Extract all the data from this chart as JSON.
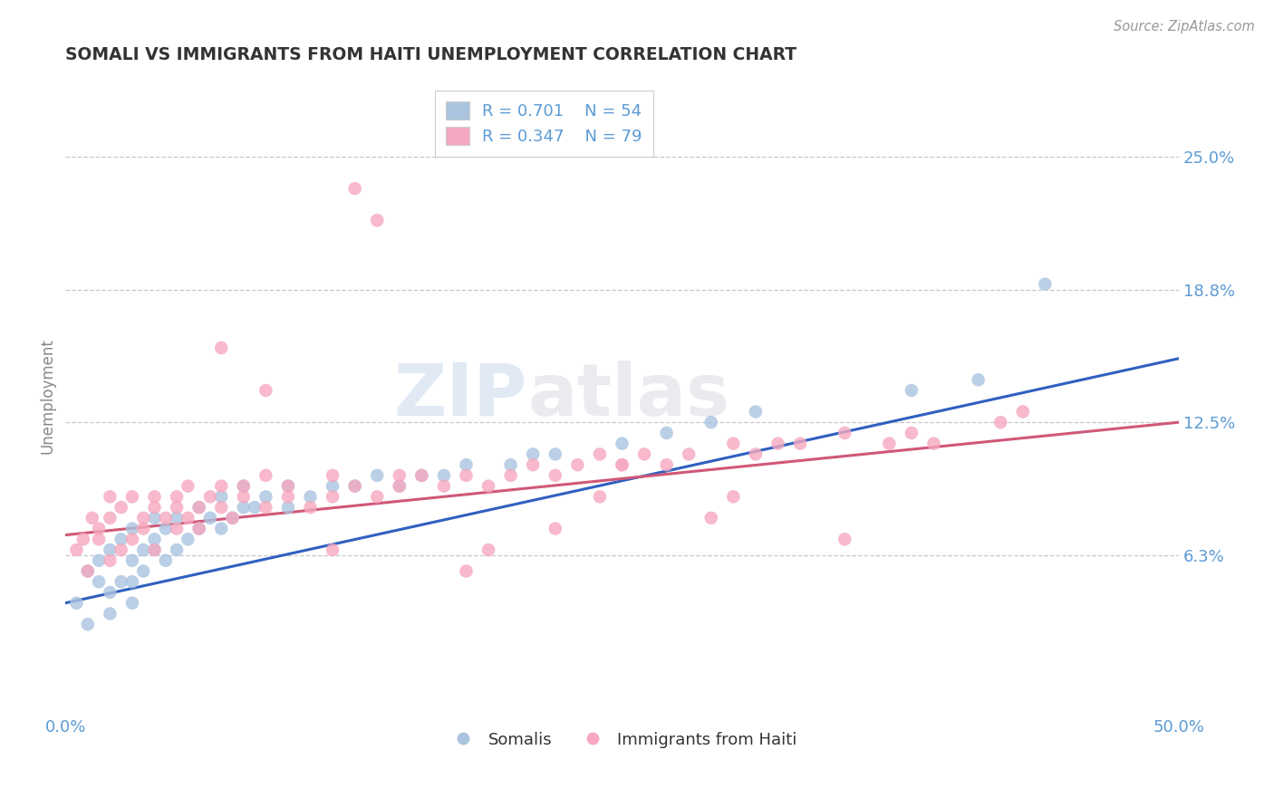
{
  "title": "SOMALI VS IMMIGRANTS FROM HAITI UNEMPLOYMENT CORRELATION CHART",
  "source": "Source: ZipAtlas.com",
  "ylabel": "Unemployment",
  "xmin": 0.0,
  "xmax": 0.5,
  "ymin": -0.01,
  "ymax": 0.285,
  "yticks": [
    0.0625,
    0.125,
    0.1875,
    0.25
  ],
  "ytick_labels": [
    "6.3%",
    "12.5%",
    "18.8%",
    "25.0%"
  ],
  "xticks": [
    0.0,
    0.5
  ],
  "xtick_labels": [
    "0.0%",
    "50.0%"
  ],
  "somali_R": 0.701,
  "somali_N": 54,
  "haiti_R": 0.347,
  "haiti_N": 79,
  "somali_color": "#aac4e0",
  "haiti_color": "#f5a8bf",
  "somali_line_color": "#3060c0",
  "haiti_line_color": "#d05878",
  "background_color": "#ffffff",
  "watermark_zip": "ZIP",
  "watermark_atlas": "atlas",
  "title_color": "#333333",
  "tick_label_color": "#5b9bd5",
  "grid_color": "#bbbbbb",
  "somali_x": [
    0.005,
    0.01,
    0.01,
    0.015,
    0.015,
    0.02,
    0.02,
    0.02,
    0.025,
    0.025,
    0.03,
    0.03,
    0.03,
    0.03,
    0.035,
    0.035,
    0.04,
    0.04,
    0.04,
    0.045,
    0.045,
    0.05,
    0.05,
    0.055,
    0.06,
    0.06,
    0.065,
    0.07,
    0.07,
    0.075,
    0.08,
    0.08,
    0.085,
    0.09,
    0.1,
    0.1,
    0.11,
    0.12,
    0.13,
    0.14,
    0.15,
    0.16,
    0.17,
    0.18,
    0.2,
    0.21,
    0.22,
    0.25,
    0.27,
    0.29,
    0.31,
    0.38,
    0.41,
    0.44
  ],
  "somali_y": [
    0.04,
    0.055,
    0.03,
    0.05,
    0.06,
    0.045,
    0.035,
    0.065,
    0.05,
    0.07,
    0.04,
    0.06,
    0.075,
    0.05,
    0.065,
    0.055,
    0.07,
    0.065,
    0.08,
    0.06,
    0.075,
    0.065,
    0.08,
    0.07,
    0.075,
    0.085,
    0.08,
    0.075,
    0.09,
    0.08,
    0.085,
    0.095,
    0.085,
    0.09,
    0.085,
    0.095,
    0.09,
    0.095,
    0.095,
    0.1,
    0.095,
    0.1,
    0.1,
    0.105,
    0.105,
    0.11,
    0.11,
    0.115,
    0.12,
    0.125,
    0.13,
    0.14,
    0.145,
    0.19
  ],
  "haiti_x": [
    0.005,
    0.008,
    0.01,
    0.012,
    0.015,
    0.015,
    0.02,
    0.02,
    0.02,
    0.025,
    0.025,
    0.03,
    0.03,
    0.035,
    0.035,
    0.04,
    0.04,
    0.04,
    0.045,
    0.05,
    0.05,
    0.05,
    0.055,
    0.055,
    0.06,
    0.06,
    0.065,
    0.07,
    0.07,
    0.075,
    0.08,
    0.08,
    0.09,
    0.09,
    0.1,
    0.1,
    0.11,
    0.12,
    0.12,
    0.13,
    0.14,
    0.15,
    0.15,
    0.16,
    0.17,
    0.18,
    0.19,
    0.2,
    0.21,
    0.22,
    0.23,
    0.24,
    0.25,
    0.26,
    0.27,
    0.28,
    0.3,
    0.31,
    0.32,
    0.33,
    0.35,
    0.37,
    0.38,
    0.39,
    0.42,
    0.43,
    0.07,
    0.09,
    0.12,
    0.18,
    0.22,
    0.13,
    0.25,
    0.29,
    0.14,
    0.19,
    0.3,
    0.35,
    0.24
  ],
  "haiti_y": [
    0.065,
    0.07,
    0.055,
    0.08,
    0.07,
    0.075,
    0.06,
    0.08,
    0.09,
    0.065,
    0.085,
    0.07,
    0.09,
    0.075,
    0.08,
    0.065,
    0.09,
    0.085,
    0.08,
    0.075,
    0.09,
    0.085,
    0.08,
    0.095,
    0.085,
    0.075,
    0.09,
    0.085,
    0.095,
    0.08,
    0.09,
    0.095,
    0.085,
    0.1,
    0.09,
    0.095,
    0.085,
    0.09,
    0.1,
    0.095,
    0.09,
    0.1,
    0.095,
    0.1,
    0.095,
    0.1,
    0.095,
    0.1,
    0.105,
    0.1,
    0.105,
    0.11,
    0.105,
    0.11,
    0.105,
    0.11,
    0.115,
    0.11,
    0.115,
    0.115,
    0.12,
    0.115,
    0.12,
    0.115,
    0.125,
    0.13,
    0.16,
    0.14,
    0.065,
    0.055,
    0.075,
    0.235,
    0.105,
    0.08,
    0.22,
    0.065,
    0.09,
    0.07,
    0.09
  ],
  "somali_line_x0": 0.0,
  "somali_line_x1": 0.5,
  "somali_line_y0": 0.04,
  "somali_line_y1": 0.155,
  "haiti_line_x0": 0.0,
  "haiti_line_x1": 0.5,
  "haiti_line_y0": 0.072,
  "haiti_line_y1": 0.125
}
